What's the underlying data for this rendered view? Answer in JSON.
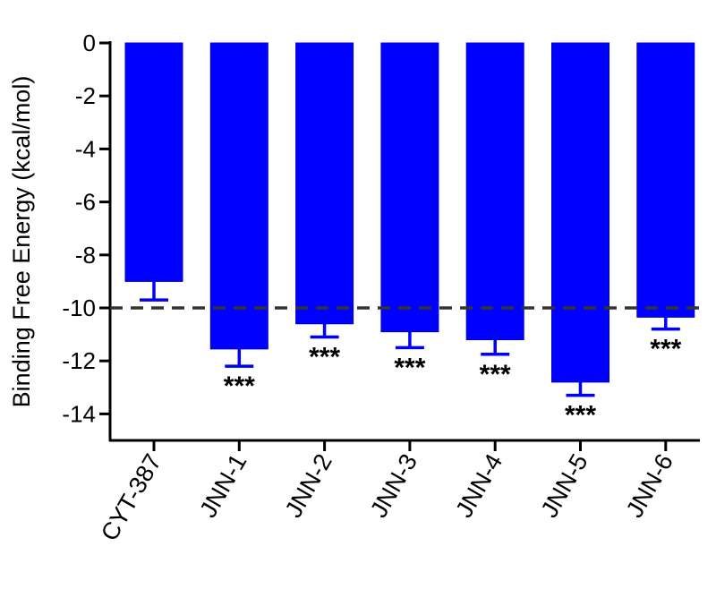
{
  "chart_data": {
    "type": "bar",
    "title": "",
    "xlabel": "",
    "ylabel": "Binding Free Energy (kcal/mol)",
    "ylim": [
      -15,
      0
    ],
    "yticks": [
      0,
      -2,
      -4,
      -6,
      -8,
      -10,
      -12,
      -14
    ],
    "ytick_labels": [
      "0",
      "-2",
      "-4",
      "-6",
      "-8",
      "-10",
      "-12",
      "-14"
    ],
    "categories": [
      "CYT-387",
      "JNN-1",
      "JNN-2",
      "JNN-3",
      "JNN-4",
      "JNN-5",
      "JNN-6"
    ],
    "values": [
      -9.0,
      -11.55,
      -10.6,
      -10.9,
      -11.2,
      -12.8,
      -10.35
    ],
    "errors": [
      0.7,
      0.65,
      0.5,
      0.6,
      0.55,
      0.5,
      0.45
    ],
    "significance": [
      "",
      "***",
      "***",
      "***",
      "***",
      "***",
      "***"
    ],
    "reference_line": -10,
    "bar_color": "#0000ff",
    "reference_line_color": "#333333"
  }
}
